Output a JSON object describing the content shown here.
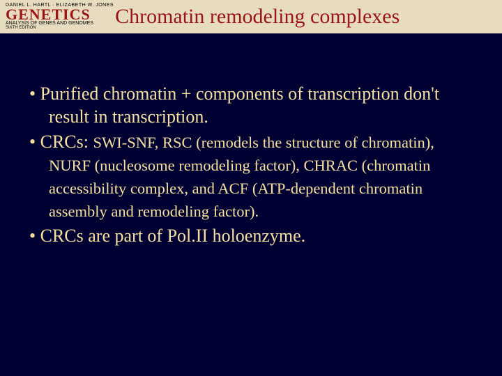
{
  "header": {
    "authors": "DANIEL L. HARTL · ELIZABETH W. JONES",
    "book_title": "GENETICS",
    "subtitle": "ANALYSIS OF GENES AND GENOMES",
    "edition": "SIXTH EDITION",
    "slide_title": "Chromatin remodeling complexes"
  },
  "bullets": {
    "b1": "Purified chromatin + components of transcription don't result in transcription.",
    "b2_lead": "CRCs: ",
    "b2_rest": "SWI-SNF, RSC (remodels the structure of chromatin), NURF (nucleosome remodeling factor), CHRAC (chromatin accessibility complex, and ACF (ATP-dependent chromatin assembly and remodeling factor).",
    "b3": "CRCs are part of Pol.II holoenzyme."
  },
  "colors": {
    "background": "#000033",
    "band": "#e8dcc0",
    "title_red": "#9a1515",
    "body_text": "#f5e0a0"
  }
}
